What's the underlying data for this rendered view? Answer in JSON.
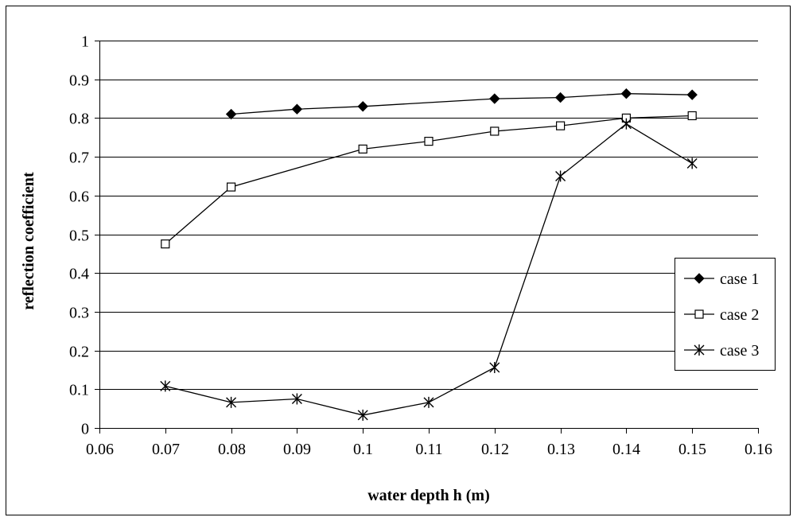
{
  "chart_data": {
    "type": "line",
    "title": "",
    "xlabel": "water depth h (m)",
    "ylabel": "reflection coefficient",
    "xlim": [
      0.06,
      0.16
    ],
    "ylim": [
      0,
      1
    ],
    "x_ticks": [
      "0.06",
      "0.07",
      "0.08",
      "0.09",
      "0.1",
      "0.11",
      "0.12",
      "0.13",
      "0.14",
      "0.15",
      "0.16"
    ],
    "x_tick_values": [
      0.06,
      0.07,
      0.08,
      0.09,
      0.1,
      0.11,
      0.12,
      0.13,
      0.14,
      0.15,
      0.16
    ],
    "y_ticks": [
      "0",
      "0.1",
      "0.2",
      "0.3",
      "0.4",
      "0.5",
      "0.6",
      "0.7",
      "0.8",
      "0.9",
      "1"
    ],
    "y_tick_values": [
      0,
      0.1,
      0.2,
      0.3,
      0.4,
      0.5,
      0.6,
      0.7,
      0.8,
      0.9,
      1.0
    ],
    "grid": "horizontal",
    "legend_position": "right",
    "series": [
      {
        "name": "case 1",
        "marker": "diamond-filled",
        "x": [
          0.08,
          0.09,
          0.1,
          0.12,
          0.13,
          0.14,
          0.15
        ],
        "y": [
          0.81,
          0.823,
          0.83,
          0.85,
          0.853,
          0.863,
          0.86
        ]
      },
      {
        "name": "case 2",
        "marker": "square-open",
        "x": [
          0.07,
          0.08,
          0.1,
          0.11,
          0.12,
          0.13,
          0.14,
          0.15
        ],
        "y": [
          0.475,
          0.622,
          0.72,
          0.74,
          0.766,
          0.78,
          0.8,
          0.806
        ]
      },
      {
        "name": "case 3",
        "marker": "star",
        "x": [
          0.07,
          0.08,
          0.09,
          0.1,
          0.11,
          0.12,
          0.13,
          0.14,
          0.15
        ],
        "y": [
          0.108,
          0.066,
          0.075,
          0.033,
          0.066,
          0.156,
          0.65,
          0.785,
          0.683
        ]
      }
    ]
  }
}
